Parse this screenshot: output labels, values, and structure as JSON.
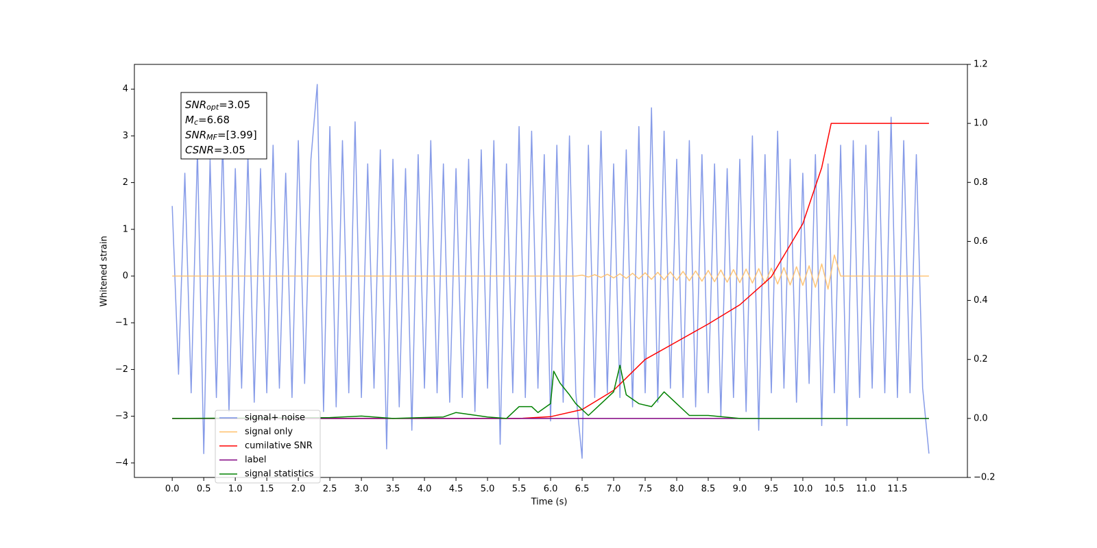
{
  "chart_data": {
    "type": "line",
    "xlabel": "Time (s)",
    "ylabel": "Whitened strain",
    "xlim": [
      -0.6,
      12.61
    ],
    "ylim": [
      -4.31,
      4.53
    ],
    "y2lim": [
      -0.2,
      1.2
    ],
    "xticks": [
      {
        "value": 0,
        "label": "0.0"
      },
      {
        "value": 0.5,
        "label": "0.5"
      },
      {
        "value": 1,
        "label": "1.0"
      },
      {
        "value": 1.5,
        "label": "1.5"
      },
      {
        "value": 2,
        "label": "2.0"
      },
      {
        "value": 2.5,
        "label": "2.5"
      },
      {
        "value": 3,
        "label": "3.0"
      },
      {
        "value": 3.5,
        "label": "3.5"
      },
      {
        "value": 4,
        "label": "4.0"
      },
      {
        "value": 4.5,
        "label": "4.5"
      },
      {
        "value": 5,
        "label": "5.0"
      },
      {
        "value": 5.5,
        "label": "5.5"
      },
      {
        "value": 6,
        "label": "6.0"
      },
      {
        "value": 6.5,
        "label": "6.5"
      },
      {
        "value": 7,
        "label": "7.0"
      },
      {
        "value": 7.5,
        "label": "7.5"
      },
      {
        "value": 8,
        "label": "8.0"
      },
      {
        "value": 8.5,
        "label": "8.5"
      },
      {
        "value": 9,
        "label": "9.0"
      },
      {
        "value": 9.5,
        "label": "9.5"
      },
      {
        "value": 10,
        "label": "10.0"
      },
      {
        "value": 10.5,
        "label": "10.5"
      },
      {
        "value": 11,
        "label": "11.0"
      },
      {
        "value": 11.5,
        "label": "11.5"
      }
    ],
    "yticks": [
      {
        "value": -4,
        "label": "−4"
      },
      {
        "value": -3,
        "label": "−3"
      },
      {
        "value": -2,
        "label": "−2"
      },
      {
        "value": -1,
        "label": "−1"
      },
      0,
      1,
      2,
      3,
      4
    ],
    "y2ticks": [
      {
        "value": -0.2,
        "label": "−0.2"
      },
      {
        "value": 0,
        "label": "0.0"
      },
      {
        "value": 0.2,
        "label": "0.2"
      },
      {
        "value": 0.4,
        "label": "0.4"
      },
      {
        "value": 0.6,
        "label": "0.6"
      },
      {
        "value": 0.8,
        "label": "0.8"
      },
      {
        "value": 1,
        "label": "1.0"
      },
      {
        "value": 1.2,
        "label": "1.2"
      }
    ],
    "legend": "lower left",
    "annotations": [
      {
        "symbol": "SNR",
        "subscript": "opt",
        "text": "=3.05"
      },
      {
        "symbol": "M",
        "subscript": "c",
        "text": "=6.68"
      },
      {
        "symbol": "SNR",
        "subscript": "MF",
        "text": "=[3.99]"
      },
      {
        "symbol": "CSNR",
        "text": "=3.05"
      }
    ],
    "x": [
      0,
      0.1,
      0.2,
      0.3,
      0.4,
      0.5,
      0.6,
      0.7,
      0.8,
      0.9,
      1,
      1.1,
      1.2,
      1.3,
      1.4,
      1.5,
      1.6,
      1.7,
      1.8,
      1.9,
      2,
      2.1,
      2.2,
      2.3,
      2.4,
      2.5,
      2.6,
      2.7,
      2.8,
      2.9,
      3,
      3.1,
      3.2,
      3.3,
      3.4,
      3.5,
      3.6,
      3.7,
      3.8,
      3.9,
      4,
      4.1,
      4.2,
      4.3,
      4.4,
      4.5,
      4.6,
      4.7,
      4.8,
      4.9,
      5,
      5.1,
      5.2,
      5.3,
      5.4,
      5.5,
      5.6,
      5.7,
      5.8,
      5.9,
      6,
      6.1,
      6.2,
      6.3,
      6.4,
      6.5,
      6.6,
      6.7,
      6.8,
      6.9,
      7,
      7.1,
      7.2,
      7.3,
      7.4,
      7.5,
      7.6,
      7.7,
      7.8,
      7.9,
      8,
      8.1,
      8.2,
      8.3,
      8.4,
      8.5,
      8.6,
      8.7,
      8.8,
      8.9,
      9,
      9.1,
      9.2,
      9.3,
      9.4,
      9.5,
      9.6,
      9.7,
      9.8,
      9.9,
      10,
      10.1,
      10.2,
      10.3,
      10.4,
      10.5,
      10.6,
      10.7,
      10.8,
      10.9,
      11,
      11.1,
      11.2,
      11.3,
      11.4,
      11.5,
      11.6,
      11.7,
      11.8,
      11.9,
      12
    ],
    "series": [
      {
        "name": "signal+ noise",
        "color": "#7990e6",
        "values": [
          1.5,
          -2.1,
          2.2,
          -2.5,
          2.7,
          -3.8,
          2.5,
          -2.6,
          2.9,
          -2.9,
          2.3,
          -2.4,
          2.6,
          -2.7,
          2.3,
          -2.5,
          2.8,
          -2.4,
          2.2,
          -2.6,
          2.9,
          -2.3,
          2.5,
          4.1,
          -2.9,
          3.2,
          -2.8,
          2.9,
          -2.5,
          3.3,
          -2.6,
          2.4,
          -2.4,
          2.7,
          -3.7,
          2.5,
          -2.8,
          2.3,
          -3.3,
          2.6,
          -2.4,
          2.9,
          -2.5,
          2.4,
          -2.7,
          2.3,
          -2.6,
          2.5,
          -2.9,
          2.7,
          -2.4,
          2.9,
          -3.6,
          2.4,
          -2.5,
          3.2,
          -2.6,
          3.1,
          -2.4,
          2.6,
          -3.1,
          2.8,
          -2.7,
          3.0,
          -2.5,
          -3.9,
          2.8,
          -2.6,
          3.1,
          -2.5,
          2.4,
          -2.6,
          2.7,
          -2.8,
          3.2,
          -2.5,
          3.6,
          -2.7,
          3.1,
          -2.4,
          2.5,
          -2.6,
          2.9,
          -2.8,
          2.6,
          -2.5,
          2.4,
          -3.0,
          2.3,
          -2.6,
          2.5,
          -2.9,
          3.0,
          -3.3,
          2.6,
          -2.5,
          3.1,
          -2.4,
          2.5,
          -2.7,
          2.2,
          -2.3,
          2.6,
          -3.2,
          2.4,
          -2.5,
          2.8,
          -3.2,
          2.9,
          -2.6,
          2.8,
          -2.4,
          3.1,
          -2.5,
          3.4,
          -2.6,
          2.9,
          -2.5,
          2.6,
          -2.4,
          -3.8
        ]
      },
      {
        "name": "signal only",
        "color": "#ffbf69",
        "values": [
          0,
          0,
          0,
          0,
          0,
          0,
          0,
          0,
          0,
          0,
          0,
          0,
          0,
          0,
          0,
          0,
          0,
          0,
          0,
          0,
          0,
          0,
          0,
          0,
          0,
          0,
          0,
          0,
          0,
          0,
          0,
          0,
          0,
          0,
          0,
          0,
          0,
          0,
          0,
          0,
          0,
          0,
          0,
          0,
          0,
          0,
          0,
          0,
          0,
          0,
          0,
          0,
          0,
          0,
          0,
          0,
          0,
          0,
          0,
          0,
          0,
          0,
          0,
          0,
          0,
          0.02,
          -0.02,
          0.03,
          -0.03,
          0.04,
          -0.04,
          0.05,
          -0.05,
          0.06,
          -0.06,
          0.07,
          -0.07,
          0.08,
          -0.08,
          0.09,
          -0.09,
          0.1,
          -0.1,
          0.11,
          -0.11,
          0.12,
          -0.12,
          0.13,
          -0.13,
          0.14,
          -0.14,
          0.15,
          -0.15,
          0.16,
          -0.16,
          0.17,
          -0.17,
          0.18,
          -0.19,
          0.2,
          -0.2,
          0.22,
          -0.24,
          0.26,
          -0.28,
          0.45,
          0,
          0,
          0,
          0,
          0,
          0,
          0,
          0,
          0,
          0,
          0,
          0,
          0,
          0,
          0
        ]
      },
      {
        "name": "cumilative SNR",
        "color": "#ff0000",
        "axis": "y2",
        "x": [
          0,
          5.5,
          6,
          6.5,
          7,
          7.5,
          8,
          8.5,
          9,
          9.5,
          10,
          10.3,
          10.45,
          12
        ],
        "values": [
          0,
          0,
          0.006,
          0.03,
          0.095,
          0.2,
          0.26,
          0.32,
          0.385,
          0.48,
          0.66,
          0.85,
          1.0,
          1.0
        ]
      },
      {
        "name": "label",
        "color": "#800080",
        "axis": "y2",
        "x": [
          0,
          12
        ],
        "values": [
          0,
          0
        ]
      },
      {
        "name": "signal statistics",
        "color": "#008000",
        "axis": "y2",
        "x": [
          0,
          2.5,
          3,
          3.5,
          4.3,
          4.5,
          5,
          5.3,
          5.5,
          5.7,
          5.8,
          6,
          6.05,
          6.15,
          6.3,
          6.4,
          6.6,
          6.8,
          7,
          7.1,
          7.2,
          7.4,
          7.6,
          7.8,
          8,
          8.2,
          8.5,
          9,
          12
        ],
        "values": [
          0,
          0.003,
          0.008,
          0,
          0.005,
          0.02,
          0.005,
          0,
          0.04,
          0.04,
          0.02,
          0.05,
          0.16,
          0.12,
          0.08,
          0.05,
          0.01,
          0.05,
          0.09,
          0.18,
          0.08,
          0.05,
          0.04,
          0.09,
          0.05,
          0.01,
          0.01,
          0,
          0
        ]
      }
    ]
  }
}
